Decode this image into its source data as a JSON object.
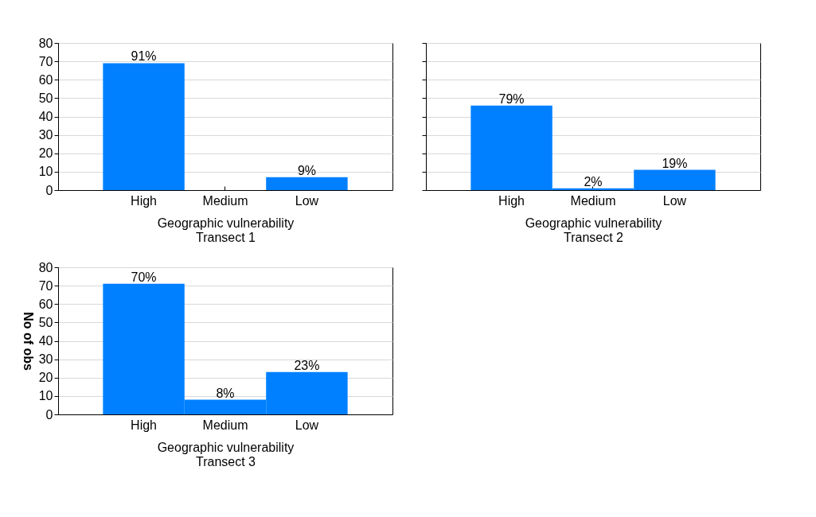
{
  "chart_data": [
    {
      "type": "bar",
      "xlabel": "Geographic vulnerability\nTransect 1",
      "categories": [
        "High",
        "Medium",
        "Low"
      ],
      "values": [
        69,
        0,
        7
      ],
      "color": "#0080ff",
      "ylim": [
        0,
        80
      ],
      "yticks": [
        0,
        10,
        20,
        30,
        40,
        50,
        60,
        70,
        80
      ],
      "grid": "y",
      "annotations": [
        {
          "text": "91%",
          "x": "High",
          "y": 69
        },
        {
          "text": "9%",
          "x": "Low",
          "y": 7
        }
      ]
    },
    {
      "type": "bar",
      "xlabel": "Geographic vulnerability\nTransect 2",
      "categories": [
        "High",
        "Medium",
        "Low"
      ],
      "values": [
        46,
        1,
        11
      ],
      "color": "#0080ff",
      "ylim": [
        0,
        80
      ],
      "yticks": [
        0,
        10,
        20,
        30,
        40,
        50,
        60,
        70,
        80
      ],
      "grid": "y",
      "tick_labels": "x",
      "annotations": [
        {
          "text": "79%",
          "x": "High",
          "y": 46
        },
        {
          "text": "2%",
          "x": "Medium",
          "y": 1
        },
        {
          "text": "19%",
          "x": "Low",
          "y": 11
        }
      ]
    },
    {
      "type": "bar",
      "xlabel": "Geographic vulnerability\nTransect 3",
      "ylabel": "No of obs",
      "categories": [
        "High",
        "Medium",
        "Low"
      ],
      "values": [
        71,
        8,
        23
      ],
      "color": "#0080ff",
      "ylim": [
        0,
        80
      ],
      "yticks": [
        0,
        10,
        20,
        30,
        40,
        50,
        60,
        70,
        80
      ],
      "grid": "y",
      "annotations": [
        {
          "text": "70%",
          "x": "High",
          "y": 71
        },
        {
          "text": "8%",
          "x": "Medium",
          "y": 8
        },
        {
          "text": "23%",
          "x": "Low",
          "y": 23
        }
      ]
    }
  ]
}
